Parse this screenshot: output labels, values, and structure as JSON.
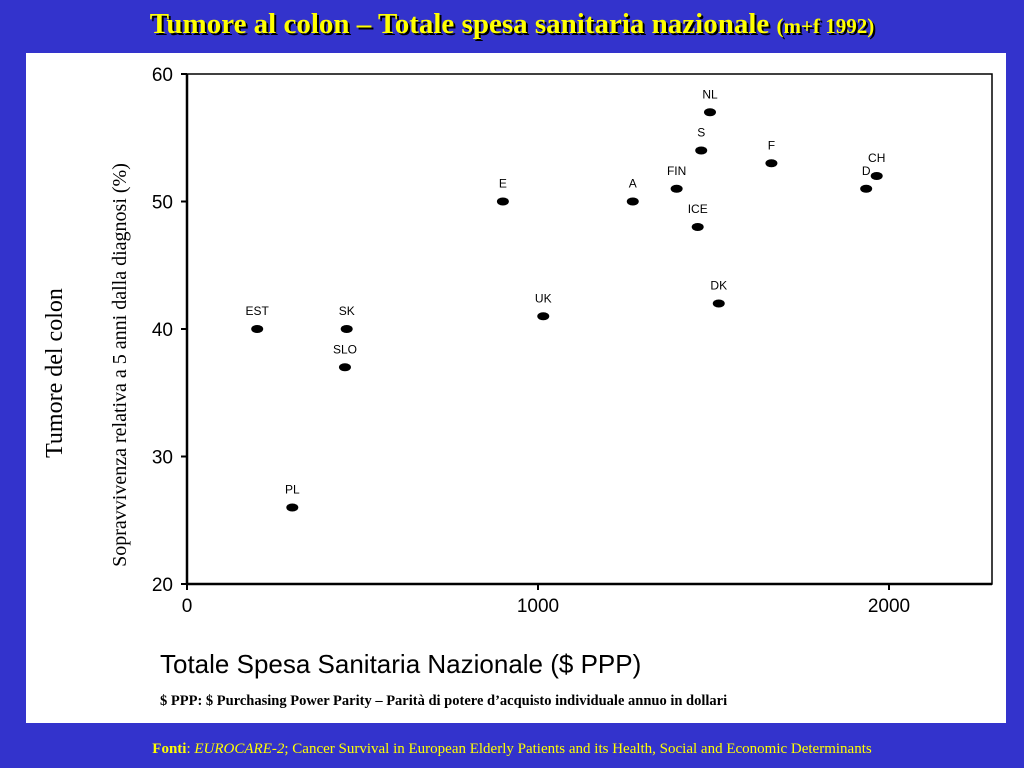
{
  "title": {
    "main": "Tumore al colon – Totale spesa sanitaria nazionale",
    "sub": "(m+f 1992)"
  },
  "footnote": "$ PPP: $ Purchasing Power Parity – Parità di potere d’acquisto individuale annuo in dollari",
  "source": {
    "label": "Fonti",
    "sep": ": ",
    "name": "EUROCARE-2",
    "rest": "; Cancer Survival in European Elderly Patients and its Health, Social and Economic Determinants"
  },
  "colors": {
    "background": "#3333cc",
    "title": "#ffff00",
    "panel": "#ffffff",
    "points": "#000000"
  },
  "chart_data": {
    "type": "scatter",
    "title": "",
    "xlabel": "Totale Spesa Sanitaria Nazionale ($ PPP)",
    "ylabel_line1": "Tumore del colon",
    "ylabel_line2": "Sopravvivenza relativa a 5 anni dalla diagnosi (%)",
    "xlim": [
      0,
      2300
    ],
    "ylim": [
      20,
      60
    ],
    "xticks": [
      0,
      1000,
      2000
    ],
    "yticks": [
      20,
      30,
      40,
      50,
      60
    ],
    "grid": false,
    "points": [
      {
        "label": "EST",
        "x": 200,
        "y": 40
      },
      {
        "label": "SK",
        "x": 455,
        "y": 40
      },
      {
        "label": "SLO",
        "x": 450,
        "y": 37
      },
      {
        "label": "PL",
        "x": 300,
        "y": 26
      },
      {
        "label": "E",
        "x": 900,
        "y": 50
      },
      {
        "label": "UK",
        "x": 1015,
        "y": 41
      },
      {
        "label": "A",
        "x": 1270,
        "y": 50
      },
      {
        "label": "FIN",
        "x": 1395,
        "y": 51
      },
      {
        "label": "S",
        "x": 1465,
        "y": 54
      },
      {
        "label": "NL",
        "x": 1490,
        "y": 57
      },
      {
        "label": "ICE",
        "x": 1455,
        "y": 48
      },
      {
        "label": "DK",
        "x": 1515,
        "y": 42
      },
      {
        "label": "F",
        "x": 1665,
        "y": 53
      },
      {
        "label": "D",
        "x": 1935,
        "y": 51
      },
      {
        "label": "CH",
        "x": 1965,
        "y": 52
      }
    ]
  }
}
